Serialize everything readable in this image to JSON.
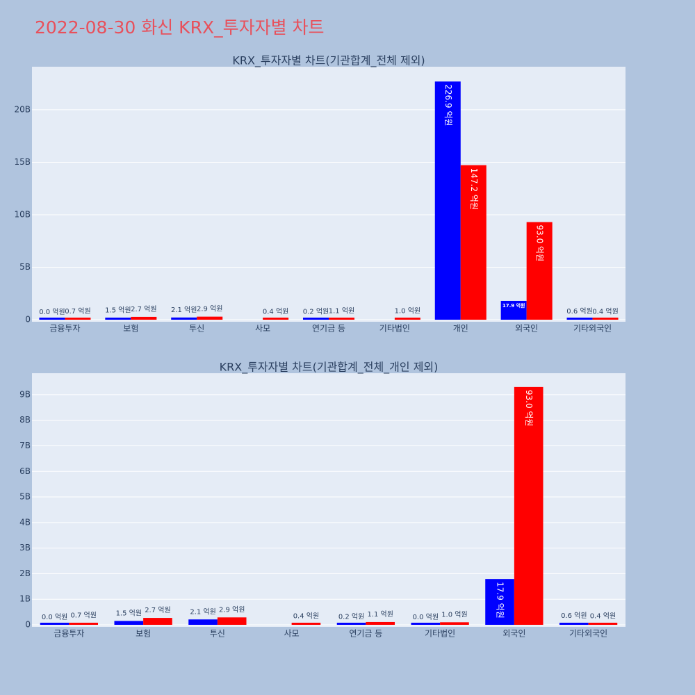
{
  "title": "2022-08-30 화신 KRX_투자자별 차트",
  "chart_data": [
    {
      "type": "bar",
      "title": "KRX_투자자별 차트(기관합계_전체 제외)",
      "categories": [
        "금융투자",
        "보험",
        "투신",
        "사모",
        "연기금 등",
        "기타법인",
        "개인",
        "외국인",
        "기타외국인"
      ],
      "series": [
        {
          "color": "#0000ff",
          "values": [
            0,
            150000000,
            210000000,
            null,
            20000000,
            null,
            22690000000,
            1790000000,
            60000000
          ],
          "value_labels": [
            "0.0 억원",
            "1.5 억원",
            "2.1 억원",
            null,
            "0.2 억원",
            null,
            "226.9 억원",
            "17.9 억원",
            "0.6 억원"
          ]
        },
        {
          "color": "#ff0000",
          "values": [
            70000000,
            270000000,
            290000000,
            40000000,
            110000000,
            100000000,
            14720000000,
            9300000000,
            40000000
          ],
          "value_labels": [
            "0.7 억원",
            "2.7 억원",
            "2.9 억원",
            "0.4 억원",
            "1.1 억원",
            "1.0 억원",
            "147.2 억원",
            "93.0 억원",
            "0.4 억원"
          ]
        }
      ],
      "ylim": [
        0,
        24100000000
      ],
      "yticks": [
        0,
        {
          "value": 5000000000,
          "label": "5B"
        },
        {
          "value": 10000000000,
          "label": "10B"
        },
        {
          "value": 15000000000,
          "label": "15B"
        },
        {
          "value": 20000000000,
          "label": "20B"
        }
      ],
      "grid": true
    },
    {
      "type": "bar",
      "title": "KRX_투자자별 차트(기관합계_전체_개인 제외)",
      "categories": [
        "금융투자",
        "보험",
        "투신",
        "사모",
        "연기금 등",
        "기타법인",
        "외국인",
        "기타외국인"
      ],
      "series": [
        {
          "color": "#0000ff",
          "values": [
            0,
            150000000,
            210000000,
            null,
            20000000,
            0,
            1790000000,
            60000000
          ],
          "value_labels": [
            "0.0 억원",
            "1.5 억원",
            "2.1 억원",
            null,
            "0.2 억원",
            "0.0 억원",
            "17.9 억원",
            "0.6 억원"
          ]
        },
        {
          "color": "#ff0000",
          "values": [
            70000000,
            270000000,
            290000000,
            40000000,
            110000000,
            100000000,
            9300000000,
            40000000
          ],
          "value_labels": [
            "0.7 억원",
            "2.7 억원",
            "2.9 억원",
            "0.4 억원",
            "1.1 억원",
            "1.0 억원",
            "93.0 억원",
            "0.4 억원"
          ]
        }
      ],
      "ylim": [
        0,
        9840000000
      ],
      "yticks": [
        0,
        {
          "value": 1000000000,
          "label": "1B"
        },
        {
          "value": 2000000000,
          "label": "2B"
        },
        {
          "value": 3000000000,
          "label": "3B"
        },
        {
          "value": 4000000000,
          "label": "4B"
        },
        {
          "value": 5000000000,
          "label": "5B"
        },
        {
          "value": 6000000000,
          "label": "6B"
        },
        {
          "value": 7000000000,
          "label": "7B"
        },
        {
          "value": 8000000000,
          "label": "8B"
        },
        {
          "value": 9000000000,
          "label": "9B"
        }
      ],
      "grid": true
    }
  ]
}
